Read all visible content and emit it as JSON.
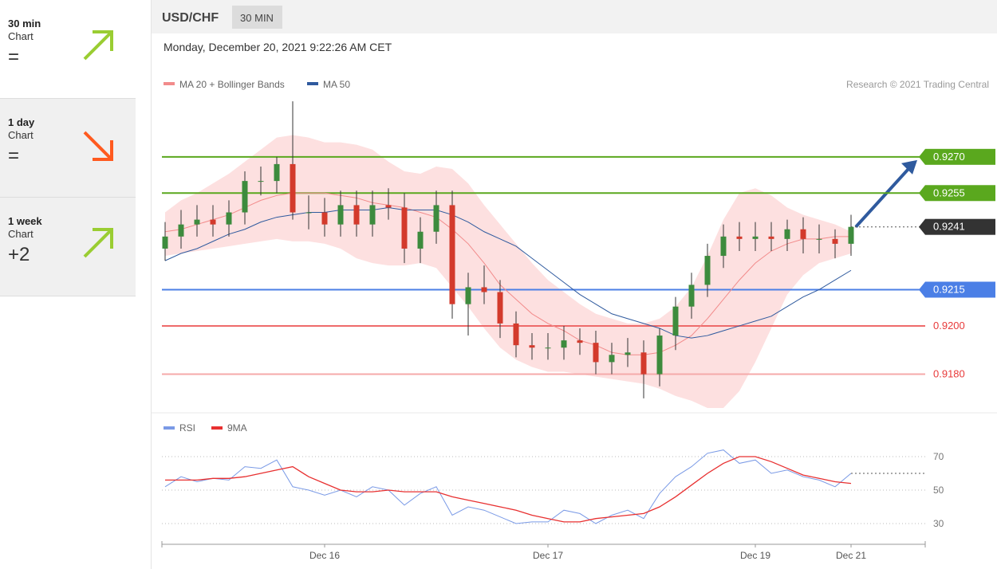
{
  "sidebar": [
    {
      "period": "30 min",
      "label": "Chart",
      "change": "=",
      "direction": "up"
    },
    {
      "period": "1 day",
      "label": "Chart",
      "change": "=",
      "direction": "down"
    },
    {
      "period": "1 week",
      "label": "Chart",
      "change": "+2",
      "direction": "up"
    }
  ],
  "header": {
    "symbol": "USD/CHF",
    "interval": "30 MIN",
    "datetime": "Monday, December 20, 2021 9:22:26 AM CET",
    "credit": "Research © 2021 Trading Central"
  },
  "chart_data": [
    {
      "type": "candlestick",
      "ylim": [
        0.9165,
        0.9297
      ],
      "categories": [
        null,
        null,
        null,
        null,
        null,
        null,
        null,
        null,
        null,
        null,
        "Dec 16",
        null,
        null,
        null,
        null,
        null,
        null,
        null,
        null,
        null,
        null,
        null,
        null,
        null,
        "Dec 17",
        null,
        null,
        null,
        null,
        null,
        null,
        null,
        null,
        null,
        null,
        null,
        null,
        "Dec 19",
        null,
        null,
        null,
        null,
        null,
        "Dec 21"
      ],
      "open": [
        0.9232,
        0.9237,
        0.9242,
        0.9244,
        0.9242,
        0.9247,
        0.926,
        0.926,
        0.9267,
        0.9247,
        0.9247,
        0.9242,
        0.925,
        0.9242,
        0.925,
        0.9249,
        0.9232,
        0.9239,
        0.925,
        0.9209,
        0.9216,
        0.9214,
        0.9201,
        0.9192,
        0.9191,
        0.9191,
        0.9194,
        0.9193,
        0.9185,
        0.9188,
        0.9189,
        0.918,
        0.9196,
        0.9208,
        0.9217,
        0.9229,
        0.9237,
        0.9236,
        0.9237,
        0.9236,
        0.924,
        0.9236,
        0.9236,
        0.9234
      ],
      "high": [
        0.9243,
        0.9248,
        0.925,
        0.925,
        0.9252,
        0.9264,
        0.9266,
        0.927,
        0.9293,
        0.9254,
        0.9253,
        0.9256,
        0.9256,
        0.9256,
        0.9257,
        0.9255,
        0.9245,
        0.9256,
        0.9256,
        0.9222,
        0.9225,
        0.9219,
        0.9206,
        0.9197,
        0.9197,
        0.92,
        0.9199,
        0.9198,
        0.9193,
        0.9195,
        0.9194,
        0.9199,
        0.9212,
        0.9222,
        0.9234,
        0.9242,
        0.9243,
        0.9243,
        0.9243,
        0.9244,
        0.9245,
        0.9242,
        0.924,
        0.9246
      ],
      "low": [
        0.9227,
        0.9232,
        0.9237,
        0.9237,
        0.9237,
        0.9242,
        0.9254,
        0.9255,
        0.9244,
        0.924,
        0.9237,
        0.9237,
        0.9237,
        0.9237,
        0.9244,
        0.9226,
        0.9226,
        0.9234,
        0.9203,
        0.9196,
        0.9209,
        0.9195,
        0.9187,
        0.9186,
        0.9186,
        0.9186,
        0.9188,
        0.918,
        0.918,
        0.9183,
        0.917,
        0.9175,
        0.919,
        0.9203,
        0.9212,
        0.9224,
        0.9231,
        0.9231,
        0.9231,
        0.9231,
        0.923,
        0.923,
        0.9228,
        0.9229
      ],
      "close": [
        0.9237,
        0.9242,
        0.9244,
        0.9242,
        0.9247,
        0.926,
        0.926,
        0.9267,
        0.9247,
        0.9247,
        0.9242,
        0.925,
        0.9242,
        0.925,
        0.9249,
        0.9232,
        0.9239,
        0.925,
        0.9209,
        0.9216,
        0.9214,
        0.9201,
        0.9192,
        0.9191,
        0.9191,
        0.9194,
        0.9193,
        0.9185,
        0.9188,
        0.9189,
        0.918,
        0.9196,
        0.9208,
        0.9217,
        0.9229,
        0.9237,
        0.9236,
        0.9237,
        0.9236,
        0.924,
        0.9236,
        0.9236,
        0.9234,
        0.9241
      ],
      "up_color": "#3d8b3d",
      "down_color": "#d33a2c",
      "series": [
        {
          "name": "MA 20 + Bollinger Bands",
          "color": "#f28b8b",
          "band_color": "#fde0e0",
          "values": [
            0.9239,
            0.924,
            0.9242,
            0.9244,
            0.9246,
            0.9249,
            0.9252,
            0.9254,
            0.9255,
            0.9255,
            0.9255,
            0.9254,
            0.9253,
            0.9251,
            0.925,
            0.9249,
            0.9247,
            0.9245,
            0.924,
            0.9234,
            0.9226,
            0.9217,
            0.9211,
            0.9205,
            0.9201,
            0.9198,
            0.9194,
            0.9192,
            0.9189,
            0.9188,
            0.9188,
            0.9189,
            0.9192,
            0.9196,
            0.9203,
            0.9211,
            0.9219,
            0.9226,
            0.9231,
            0.9234,
            0.9236,
            0.9236,
            0.9237,
            0.9237
          ],
          "upper": [
            0.9247,
            0.9252,
            0.9255,
            0.9259,
            0.9263,
            0.9268,
            0.9273,
            0.9278,
            0.9279,
            0.9278,
            0.9276,
            0.9276,
            0.9275,
            0.9273,
            0.9268,
            0.9264,
            0.9263,
            0.9266,
            0.9265,
            0.9259,
            0.925,
            0.9242,
            0.9234,
            0.9226,
            0.9219,
            0.9214,
            0.9209,
            0.9205,
            0.9203,
            0.9201,
            0.9201,
            0.9203,
            0.9208,
            0.9216,
            0.9229,
            0.9244,
            0.9255,
            0.9257,
            0.9254,
            0.9249,
            0.9246,
            0.9244,
            0.9242,
            0.9239
          ],
          "lower": [
            0.9229,
            0.923,
            0.9231,
            0.9232,
            0.9233,
            0.9234,
            0.9235,
            0.9236,
            0.9235,
            0.9235,
            0.9234,
            0.9232,
            0.9228,
            0.9226,
            0.9225,
            0.9225,
            0.9226,
            0.9224,
            0.9216,
            0.9208,
            0.9199,
            0.9191,
            0.9186,
            0.9183,
            0.9181,
            0.9181,
            0.918,
            0.9179,
            0.9178,
            0.9177,
            0.9176,
            0.9174,
            0.9171,
            0.9169,
            0.9166,
            0.9166,
            0.9173,
            0.9185,
            0.9199,
            0.9213,
            0.9221,
            0.9226,
            0.9228,
            0.923
          ]
        },
        {
          "name": "MA 50",
          "color": "#2f5a9e",
          "values": [
            0.9227,
            0.923,
            0.9232,
            0.9235,
            0.9238,
            0.924,
            0.9243,
            0.9245,
            0.9246,
            0.9247,
            0.9247,
            0.9248,
            0.9248,
            0.9248,
            0.9249,
            0.9248,
            0.9248,
            0.9248,
            0.9246,
            0.9243,
            0.9239,
            0.9236,
            0.9233,
            0.9228,
            0.9223,
            0.9218,
            0.9213,
            0.9209,
            0.9205,
            0.9203,
            0.9201,
            0.9199,
            0.9196,
            0.9195,
            0.9196,
            0.9198,
            0.92,
            0.9202,
            0.9204,
            0.9208,
            0.9212,
            0.9215,
            0.9219,
            0.9223
          ]
        }
      ],
      "levels": [
        {
          "value": 0.927,
          "label": "0.9270",
          "color": "#5aa81e",
          "box": true
        },
        {
          "value": 0.9255,
          "label": "0.9255",
          "color": "#5aa81e",
          "box": true
        },
        {
          "value": 0.9241,
          "label": "0.9241",
          "color": "#333333",
          "box": true,
          "dotted": true
        },
        {
          "value": 0.9215,
          "label": "0.9215",
          "color": "#4b7fe6",
          "box": true
        },
        {
          "value": 0.92,
          "label": "0.9200",
          "color": "#ee6a6a",
          "box": false
        },
        {
          "value": 0.918,
          "label": "0.9180",
          "color": "#f5aaaa",
          "box": false
        }
      ]
    },
    {
      "type": "line",
      "ylim": [
        20,
        85
      ],
      "yticks": [
        30,
        50,
        70
      ],
      "series": [
        {
          "name": "RSI",
          "color": "#7a9ae6",
          "values": [
            52,
            58,
            55,
            57,
            56,
            64,
            63,
            68,
            52,
            50,
            47,
            50,
            46,
            52,
            50,
            41,
            48,
            52,
            35,
            40,
            38,
            34,
            30,
            31,
            31,
            38,
            36,
            30,
            35,
            38,
            33,
            48,
            58,
            64,
            72,
            74,
            66,
            68,
            60,
            62,
            58,
            56,
            52,
            60
          ]
        },
        {
          "name": "9MA",
          "color": "#e83030",
          "values": [
            56,
            56,
            56,
            57,
            57,
            58,
            60,
            62,
            64,
            58,
            54,
            50,
            49,
            49,
            50,
            49,
            49,
            49,
            46,
            44,
            42,
            40,
            38,
            35,
            33,
            31,
            31,
            33,
            34,
            35,
            36,
            40,
            46,
            53,
            60,
            66,
            70,
            70,
            67,
            63,
            59,
            57,
            55,
            54
          ]
        }
      ]
    }
  ]
}
